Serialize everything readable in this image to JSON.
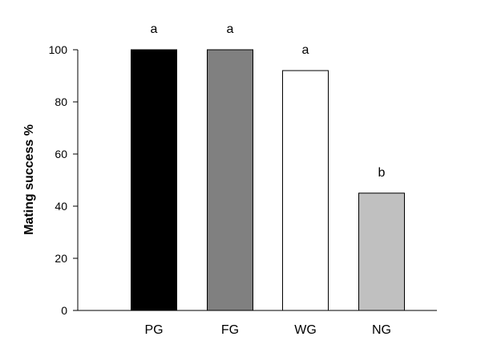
{
  "chart_data": {
    "type": "bar",
    "categories": [
      "PG",
      "FG",
      "WG",
      "NG"
    ],
    "values": [
      100,
      100,
      92,
      45
    ],
    "bar_colors": [
      "#000000",
      "#808080",
      "#ffffff",
      "#c0c0c0"
    ],
    "significance_labels": [
      "a",
      "a",
      "a",
      "b"
    ],
    "ylabel": "Mating success %",
    "xlabel": "",
    "title": "",
    "ylim": [
      0,
      100
    ],
    "yticks": [
      0,
      20,
      40,
      60,
      80,
      100
    ],
    "grid": false
  }
}
